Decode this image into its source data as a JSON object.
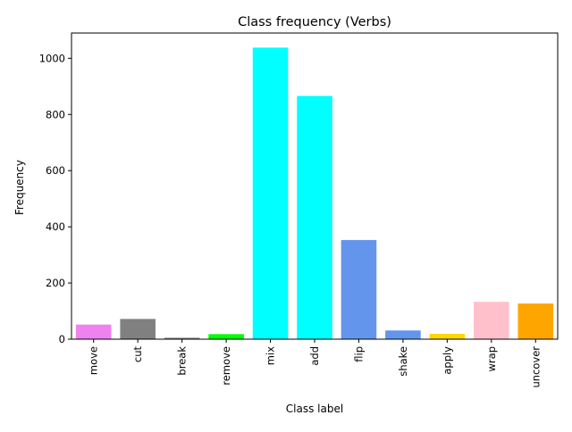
{
  "chart_data": {
    "type": "bar",
    "title": "Class frequency (Verbs)",
    "xlabel": "Class label",
    "ylabel": "Frequency",
    "categories": [
      "move",
      "cut",
      "break",
      "remove",
      "mix",
      "add",
      "flip",
      "shake",
      "apply",
      "wrap",
      "uncover"
    ],
    "values": [
      52,
      72,
      5,
      18,
      1038,
      866,
      353,
      31,
      19,
      133,
      127
    ],
    "colors": [
      "#EE82EE",
      "#808080",
      "#808080",
      "#00FF00",
      "#00FFFF",
      "#00FFFF",
      "#6495ED",
      "#6495ED",
      "#FFD700",
      "#FFC0CB",
      "#FFA500"
    ],
    "ylim": [
      0,
      1090
    ],
    "yticks": [
      0,
      200,
      400,
      600,
      800,
      1000
    ],
    "grid": false,
    "legend": "none"
  }
}
